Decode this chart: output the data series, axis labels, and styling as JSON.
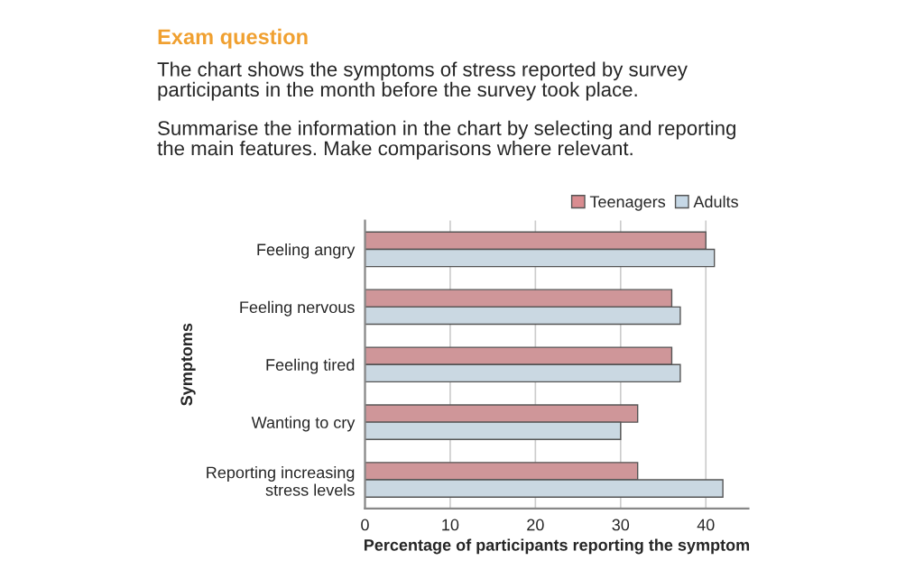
{
  "chart_data": {
    "type": "bar",
    "orientation": "horizontal",
    "title": "Exam question",
    "subtitle": "The chart shows the symptoms of stress reported by survey\nparticipants in the month before the survey took place.",
    "annotations": [
      "Summarise the information in the chart by selecting and reporting\nthe main features. Make comparisons where relevant."
    ],
    "xlabel": "Percentage of participants reporting the symptom",
    "ylabel": "Symptoms",
    "categories": [
      "Feeling angry",
      "Feeling nervous",
      "Feeling tired",
      "Wanting to cry",
      "Reporting increasing\nstress levels"
    ],
    "series": [
      {
        "name": "Teenagers",
        "color": "#d98c90",
        "values": [
          40,
          36,
          36,
          32,
          32
        ]
      },
      {
        "name": "Adults",
        "color": "#c6d8e6",
        "values": [
          41,
          37,
          37,
          30,
          42
        ]
      }
    ],
    "xlim": [
      0,
      45
    ],
    "xticks": [
      0,
      10,
      20,
      30,
      40
    ],
    "grid": "x",
    "legend": "top right"
  }
}
